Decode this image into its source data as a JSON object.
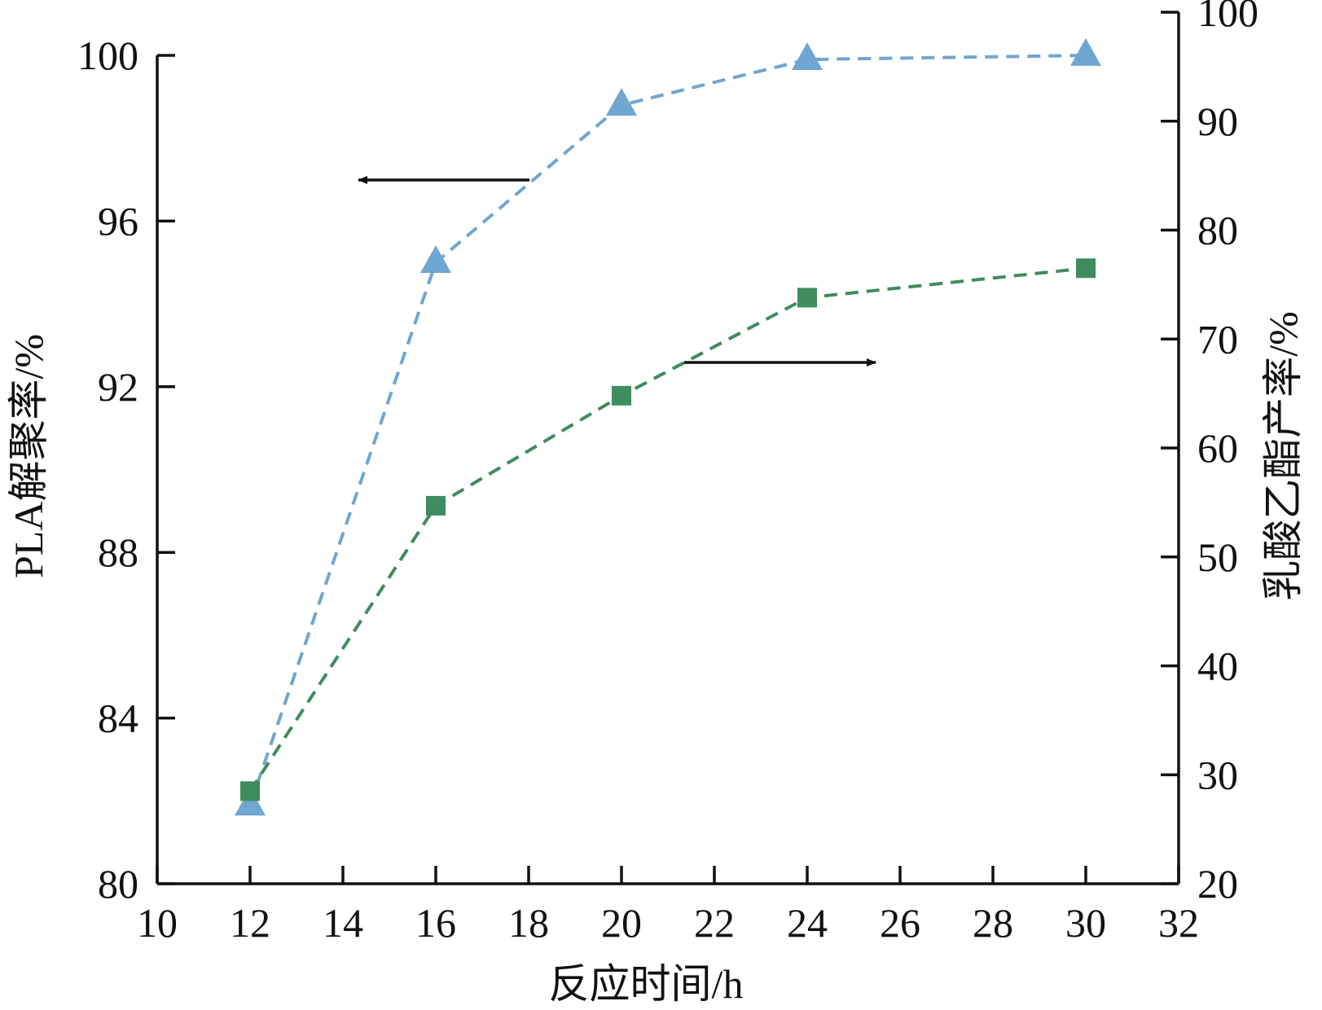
{
  "chart_data": {
    "type": "line",
    "title": "",
    "xlabel": "反应时间/h",
    "ylabel_left": "PLA解聚率/%",
    "ylabel_right": "乳酸乙酯产率/%",
    "x_ticks": [
      10,
      12,
      14,
      16,
      18,
      20,
      22,
      24,
      26,
      28,
      30,
      32
    ],
    "y_left_ticks": [
      80,
      84,
      88,
      92,
      96,
      100
    ],
    "y_right_ticks": [
      20,
      30,
      40,
      50,
      60,
      70,
      80,
      90,
      100
    ],
    "xlim": [
      10,
      32
    ],
    "ylim_left": [
      80,
      100
    ],
    "ylim_right": [
      20,
      100
    ],
    "grid": false,
    "legend": "none",
    "x": [
      12,
      16,
      20,
      24,
      30
    ],
    "series": [
      {
        "axis": "left",
        "marker": "triangle",
        "line_style": "dashed",
        "color": "#6fa6d2",
        "values": [
          81.9,
          95.0,
          98.8,
          99.9,
          100.0
        ]
      },
      {
        "axis": "right",
        "marker": "square",
        "line_style": "dashed",
        "color": "#3f8c5f",
        "values": [
          28.5,
          54.7,
          64.8,
          73.8,
          76.5
        ]
      }
    ],
    "annotations": [
      {
        "type": "arrow",
        "direction": "left",
        "points_to_axis": "left"
      },
      {
        "type": "arrow",
        "direction": "right",
        "points_to_axis": "right"
      }
    ]
  }
}
